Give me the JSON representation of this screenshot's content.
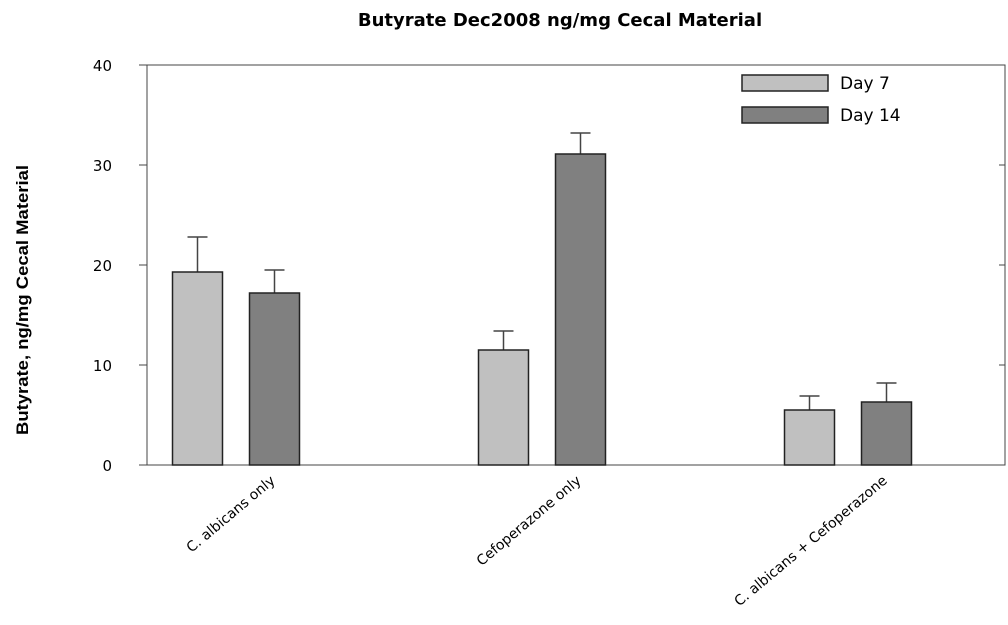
{
  "chart_data": {
    "type": "bar",
    "title": "Butyrate Dec2008 ng/mg Cecal Material",
    "y_label": "Butyrate, ng/mg Cecal Material",
    "categories": [
      "C. albicans only",
      "Cefoperazone only",
      "C. albicans + Cefoperazone"
    ],
    "series": [
      {
        "name": "Day 7",
        "color": "#c0c0c0",
        "values": [
          19.3,
          11.5,
          5.5
        ],
        "errors": [
          3.5,
          1.9,
          1.4
        ]
      },
      {
        "name": "Day 14",
        "color": "#808080",
        "values": [
          17.2,
          31.1,
          6.3
        ],
        "errors": [
          2.3,
          2.1,
          1.9
        ]
      }
    ],
    "ylim": [
      0,
      40
    ],
    "yticks": [
      0,
      10,
      20,
      30,
      40
    ],
    "legend": "upper right"
  }
}
